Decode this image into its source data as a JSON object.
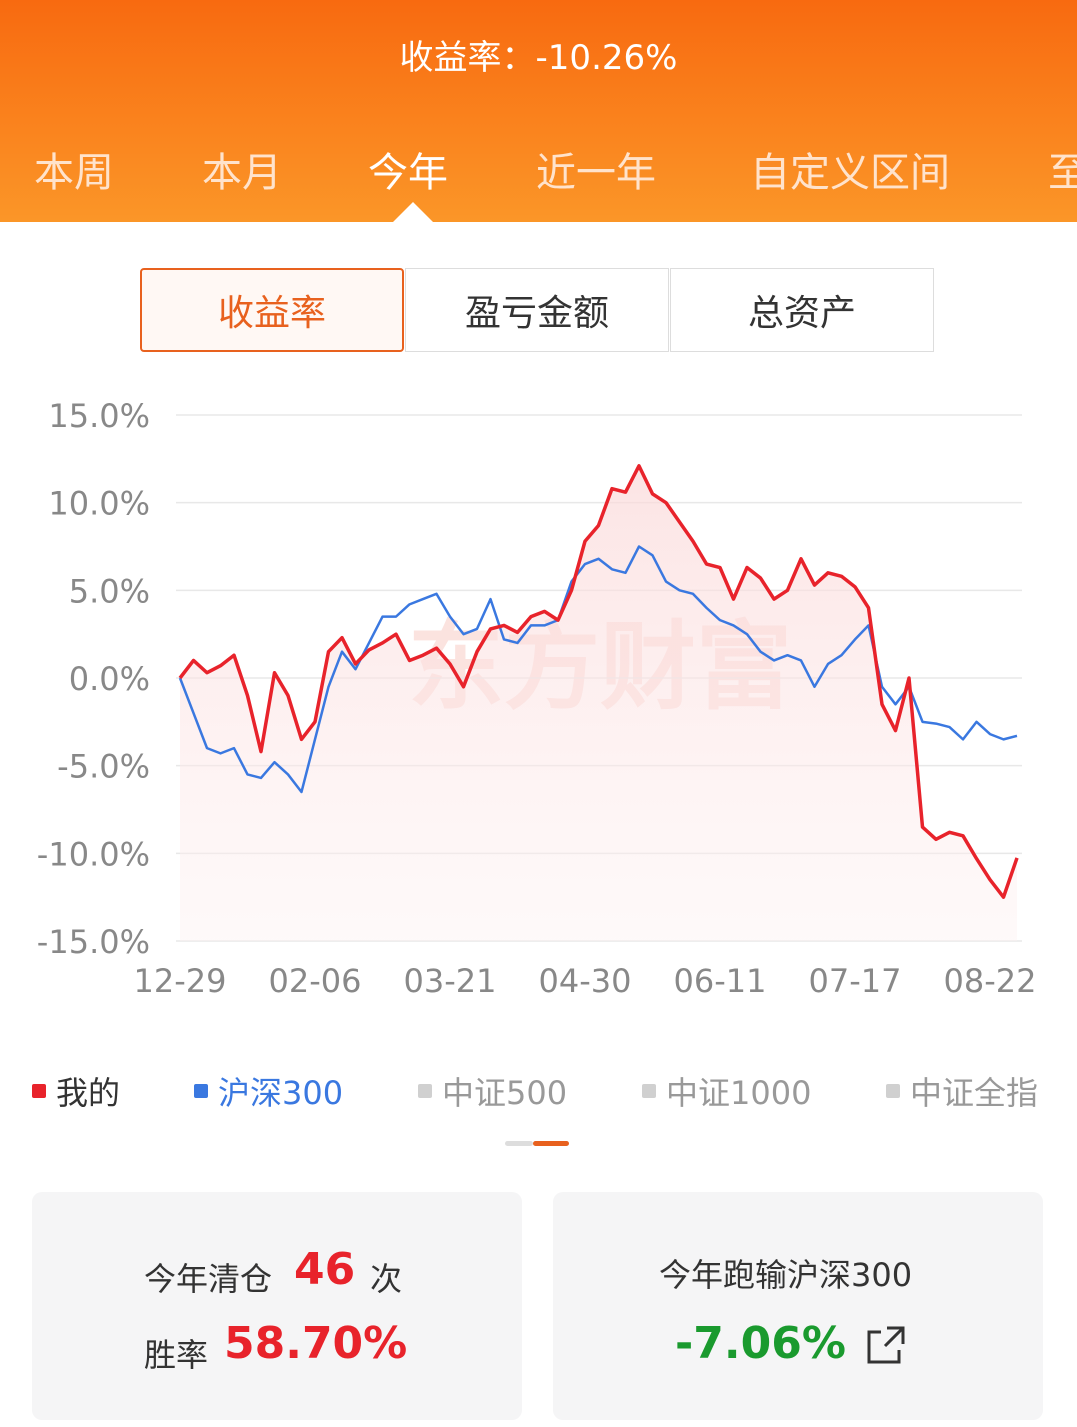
{
  "header": {
    "title": "收益率：-10.26%",
    "tabs": [
      "本周",
      "本月",
      "今年",
      "近一年",
      "自定义区间",
      "至"
    ],
    "active_tab": 2
  },
  "segments": {
    "items": [
      "收益率",
      "盈亏金额",
      "总资产"
    ],
    "active": 0
  },
  "watermark": "东方财富",
  "chart_data": {
    "type": "line",
    "categories": [
      "12-29",
      null,
      null,
      null,
      null,
      null,
      null,
      null,
      null,
      null,
      "02-06",
      null,
      null,
      null,
      null,
      null,
      null,
      null,
      null,
      null,
      "03-21",
      null,
      null,
      null,
      null,
      null,
      null,
      null,
      null,
      null,
      "04-30",
      null,
      null,
      null,
      null,
      null,
      null,
      null,
      null,
      null,
      "06-11",
      null,
      null,
      null,
      null,
      null,
      null,
      null,
      null,
      null,
      "07-17",
      null,
      null,
      null,
      null,
      null,
      null,
      null,
      null,
      null,
      "08-22",
      null,
      null
    ],
    "series": [
      {
        "name": "我的",
        "color": "#e8232b",
        "values": [
          0,
          1.0,
          0.3,
          0.7,
          1.3,
          -1.0,
          -4.2,
          0.3,
          -1.0,
          -3.5,
          -2.5,
          1.5,
          2.3,
          0.8,
          1.6,
          2.0,
          2.5,
          1.0,
          1.3,
          1.7,
          0.8,
          -0.5,
          1.5,
          2.8,
          3.0,
          2.6,
          3.5,
          3.8,
          3.3,
          5.0,
          7.8,
          8.7,
          10.8,
          10.6,
          12.1,
          10.5,
          10.0,
          8.9,
          7.8,
          6.5,
          6.3,
          4.5,
          6.3,
          5.7,
          4.5,
          5.0,
          6.8,
          5.3,
          6.0,
          5.8,
          5.2,
          4.0,
          -1.5,
          -3.0,
          0,
          -8.5,
          -9.2,
          -8.8,
          -9.0,
          -10.3,
          -11.5,
          -12.5,
          -10.26
        ]
      },
      {
        "name": "沪深300",
        "color": "#3a78e0",
        "values": [
          0,
          -2.0,
          -4.0,
          -4.3,
          -4.0,
          -5.5,
          -5.7,
          -4.8,
          -5.5,
          -6.5,
          -3.5,
          -0.5,
          1.5,
          0.5,
          2.0,
          3.5,
          3.5,
          4.2,
          4.5,
          4.8,
          3.5,
          2.5,
          2.8,
          4.5,
          2.2,
          2.0,
          3.0,
          3.0,
          3.3,
          5.5,
          6.5,
          6.8,
          6.2,
          6.0,
          7.5,
          7.0,
          5.5,
          5.0,
          4.8,
          4.0,
          3.3,
          3.0,
          2.5,
          1.5,
          1.0,
          1.3,
          1.0,
          -0.5,
          0.8,
          1.3,
          2.2,
          3.0,
          -0.5,
          -1.5,
          -0.5,
          -2.5,
          -2.6,
          -2.8,
          -3.5,
          -2.5,
          -3.2,
          -3.5,
          -3.3
        ]
      }
    ],
    "legend_inactive": [
      "中证500",
      "中证1000",
      "中证全指"
    ],
    "inactive_color": "#d0d0d0",
    "ylim": [
      -15,
      15
    ],
    "yticks": [
      {
        "value": 15,
        "label": "15.0%"
      },
      {
        "value": 10,
        "label": "10.0%"
      },
      {
        "value": 5,
        "label": "5.0%"
      },
      {
        "value": 0,
        "label": "0.0%"
      },
      {
        "value": -5,
        "label": "-5.0%"
      },
      {
        "value": -10,
        "label": "-10.0%"
      },
      {
        "value": -15,
        "label": "-15.0%"
      }
    ],
    "grid": true
  },
  "stats": {
    "clear_label": "今年清仓",
    "clear_count": "46",
    "clear_unit": "次",
    "win_label": "胜率",
    "win_rate": "58.70%",
    "vs_label": "今年跑输沪深300",
    "vs_value": "-7.06%"
  }
}
